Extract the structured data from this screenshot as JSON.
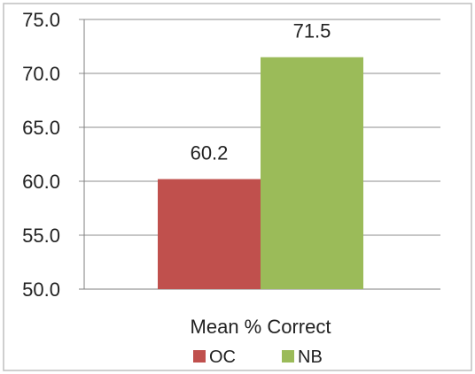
{
  "chart_data": {
    "type": "bar",
    "categories": [
      "Mean % Correct"
    ],
    "series": [
      {
        "name": "OC",
        "values": [
          60.2
        ],
        "color": "#c0504d"
      },
      {
        "name": "NB",
        "values": [
          71.5
        ],
        "color": "#9bbb59"
      }
    ],
    "data_labels": [
      "60.2",
      "71.5"
    ],
    "ylim": [
      50.0,
      75.0
    ],
    "yticks": [
      "50.0",
      "55.0",
      "60.0",
      "65.0",
      "70.0",
      "75.0"
    ],
    "grid": true,
    "legend_position": "bottom"
  }
}
